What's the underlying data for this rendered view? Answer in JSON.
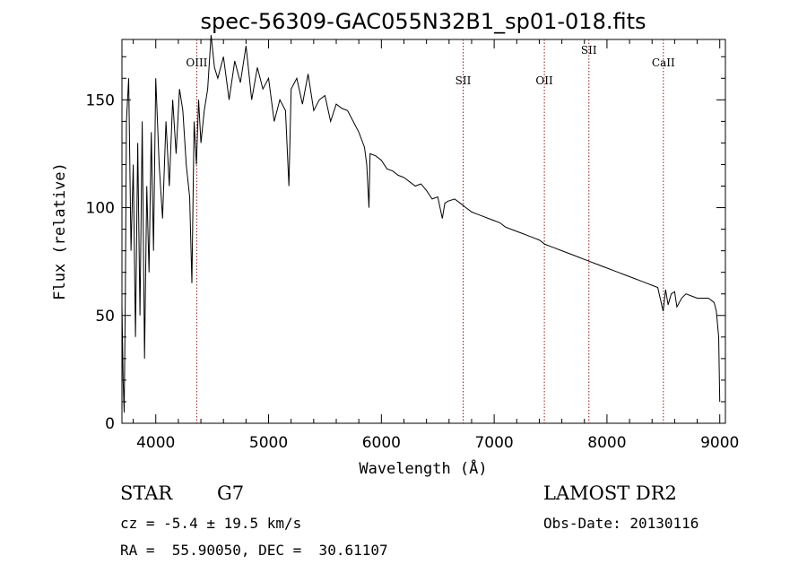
{
  "chart_data": {
    "type": "line",
    "title": "spec-56309-GAC055N32B1_sp01-018.fits",
    "xlabel": "Wavelength (Å)",
    "ylabel": "Flux (relative)",
    "xlim": [
      3700,
      9050
    ],
    "ylim": [
      0,
      178
    ],
    "xticks": [
      4000,
      5000,
      6000,
      7000,
      8000,
      9000
    ],
    "yticks": [
      0,
      50,
      100,
      150
    ],
    "grid": false,
    "line_color": "#000000",
    "marker_color": "#8b1a1a",
    "spectral_lines": [
      {
        "label": "OIII",
        "wavelength": 4363
      },
      {
        "label": "SII",
        "wavelength": 6725
      },
      {
        "label": "OII",
        "wavelength": 7445
      },
      {
        "label": "SII",
        "wavelength": 7840
      },
      {
        "label": "CaII",
        "wavelength": 8500
      }
    ],
    "series": [
      {
        "x": [
          3700,
          3710,
          3720,
          3730,
          3740,
          3760,
          3780,
          3800,
          3820,
          3840,
          3860,
          3880,
          3900,
          3920,
          3940,
          3960,
          3980,
          4000,
          4030,
          4060,
          4090,
          4120,
          4150,
          4180,
          4210,
          4240,
          4270,
          4300,
          4320,
          4340,
          4360,
          4380,
          4400,
          4430,
          4460,
          4490,
          4520,
          4550,
          4600,
          4650,
          4700,
          4750,
          4800,
          4850,
          4900,
          4950,
          5000,
          5050,
          5100,
          5150,
          5180,
          5200,
          5250,
          5300,
          5350,
          5400,
          5450,
          5500,
          5550,
          5600,
          5650,
          5700,
          5750,
          5800,
          5850,
          5870,
          5890,
          5900,
          5950,
          6000,
          6050,
          6100,
          6150,
          6200,
          6250,
          6300,
          6350,
          6400,
          6450,
          6500,
          6540,
          6563,
          6590,
          6650,
          6700,
          6750,
          6800,
          6850,
          6900,
          6950,
          7000,
          7050,
          7100,
          7150,
          7200,
          7250,
          7300,
          7350,
          7400,
          7450,
          7500,
          7550,
          7600,
          7650,
          7700,
          7750,
          7800,
          7850,
          7900,
          7950,
          8000,
          8050,
          8100,
          8150,
          8200,
          8250,
          8300,
          8350,
          8400,
          8450,
          8498,
          8520,
          8542,
          8570,
          8600,
          8620,
          8662,
          8700,
          8750,
          8800,
          8850,
          8900,
          8950,
          8970,
          8990,
          9000
        ],
        "y": [
          55,
          20,
          5,
          60,
          140,
          160,
          80,
          120,
          40,
          130,
          50,
          140,
          30,
          110,
          70,
          135,
          80,
          160,
          120,
          95,
          140,
          110,
          150,
          125,
          155,
          145,
          120,
          105,
          65,
          140,
          120,
          150,
          130,
          145,
          155,
          180,
          165,
          160,
          170,
          150,
          168,
          158,
          175,
          150,
          165,
          155,
          160,
          140,
          150,
          145,
          110,
          155,
          160,
          148,
          162,
          145,
          150,
          152,
          140,
          148,
          146,
          145,
          140,
          135,
          128,
          120,
          100,
          125,
          124,
          122,
          118,
          117,
          115,
          114,
          112,
          110,
          111,
          108,
          104,
          105,
          95,
          102,
          103,
          104,
          102,
          100,
          98,
          97,
          96,
          95,
          94,
          93,
          91,
          90,
          89,
          88,
          87,
          86,
          85,
          83,
          82,
          81,
          80,
          79,
          78,
          77,
          76,
          75,
          74,
          73,
          72,
          71,
          70,
          69,
          68,
          67,
          66,
          65,
          64,
          63,
          52,
          62,
          55,
          60,
          61,
          54,
          58,
          60,
          59,
          58,
          58,
          58,
          56,
          52,
          40,
          10
        ]
      }
    ]
  },
  "footer": {
    "object_class": "STAR",
    "subclass": "G7",
    "survey": "LAMOST DR2",
    "redshift": "cz = -5.4 ± 19.5 km/s",
    "obs_date": "Obs-Date: 20130116",
    "coords": "RA =  55.90050, DEC =  30.61107"
  }
}
